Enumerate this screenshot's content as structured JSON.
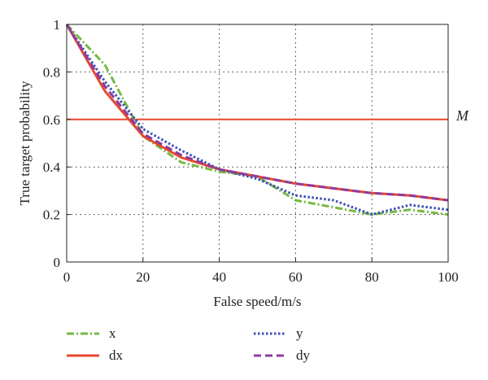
{
  "chart_data": {
    "type": "line",
    "xlabel": "False speed/m/s",
    "ylabel": "True target probability",
    "xlim": [
      0,
      100
    ],
    "ylim": [
      0,
      1
    ],
    "xticks": [
      0,
      20,
      40,
      60,
      80,
      100
    ],
    "yticks": [
      0,
      0.2,
      0.4,
      0.6,
      0.8,
      1
    ],
    "xtick_labels": [
      "0",
      "20",
      "40",
      "60",
      "80",
      "100"
    ],
    "ytick_labels": [
      "0",
      "0.2",
      "0.4",
      "0.6",
      "0.8",
      "1"
    ],
    "grid": true,
    "grid_style": "dotted",
    "legend_position": "bottom",
    "x": [
      0,
      10,
      20,
      30,
      40,
      50,
      60,
      70,
      80,
      90,
      100
    ],
    "series": [
      {
        "name": "x",
        "color": "#77b843",
        "dash": "dashdot",
        "values": [
          1.0,
          0.83,
          0.53,
          0.42,
          0.38,
          0.36,
          0.26,
          0.23,
          0.2,
          0.22,
          0.2
        ]
      },
      {
        "name": "dx",
        "color": "#e8472d",
        "dash": "solid",
        "values": [
          1.0,
          0.72,
          0.53,
          0.44,
          0.39,
          0.36,
          0.33,
          0.31,
          0.29,
          0.28,
          0.26
        ]
      },
      {
        "name": "y",
        "color": "#3c50b4",
        "dash": "dotted",
        "values": [
          1.0,
          0.76,
          0.56,
          0.47,
          0.39,
          0.35,
          0.28,
          0.26,
          0.2,
          0.24,
          0.22
        ]
      },
      {
        "name": "dy",
        "color": "#8c3c9e",
        "dash": "dashed",
        "values": [
          1.0,
          0.74,
          0.54,
          0.45,
          0.39,
          0.36,
          0.33,
          0.31,
          0.29,
          0.28,
          0.26
        ]
      }
    ],
    "reference_line": {
      "label": "M",
      "value": 0.6,
      "color": "#e8472d"
    }
  }
}
